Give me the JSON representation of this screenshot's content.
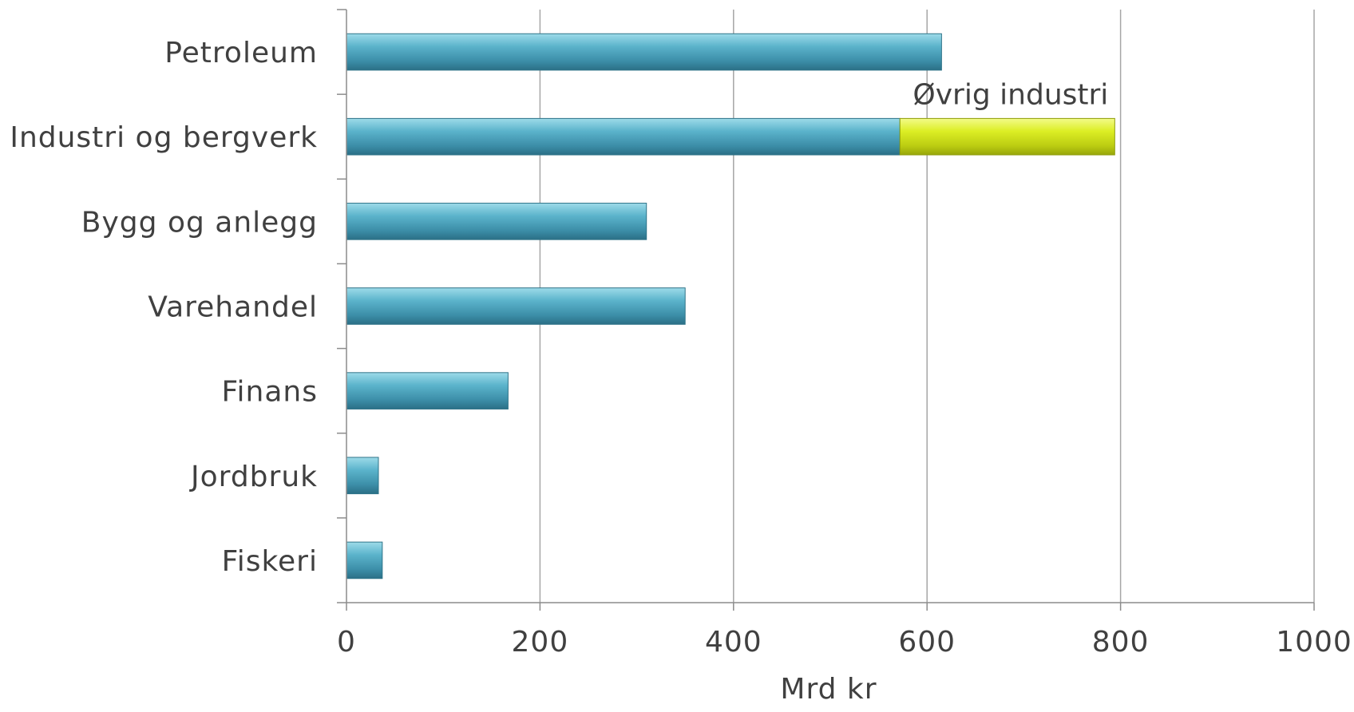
{
  "chart_data": {
    "type": "bar",
    "orientation": "horizontal",
    "stacked": true,
    "categories": [
      "Petroleum",
      "Industri og bergverk",
      "Bygg og anlegg",
      "Varehandel",
      "Finans",
      "Jordbruk",
      "Fiskeri"
    ],
    "series": [
      {
        "values": [
          615,
          572,
          310,
          350,
          167,
          33,
          37
        ],
        "color": "#4aa3bd"
      },
      {
        "name": "Øvrig industri",
        "values": [
          0,
          222,
          0,
          0,
          0,
          0,
          0
        ],
        "color": "#d9ec1c"
      }
    ],
    "xlabel": "Mrd kr",
    "xlim": [
      0,
      1000
    ],
    "xticks": [
      0,
      200,
      400,
      600,
      800,
      1000
    ],
    "grid": "vertical",
    "legend": "none"
  }
}
